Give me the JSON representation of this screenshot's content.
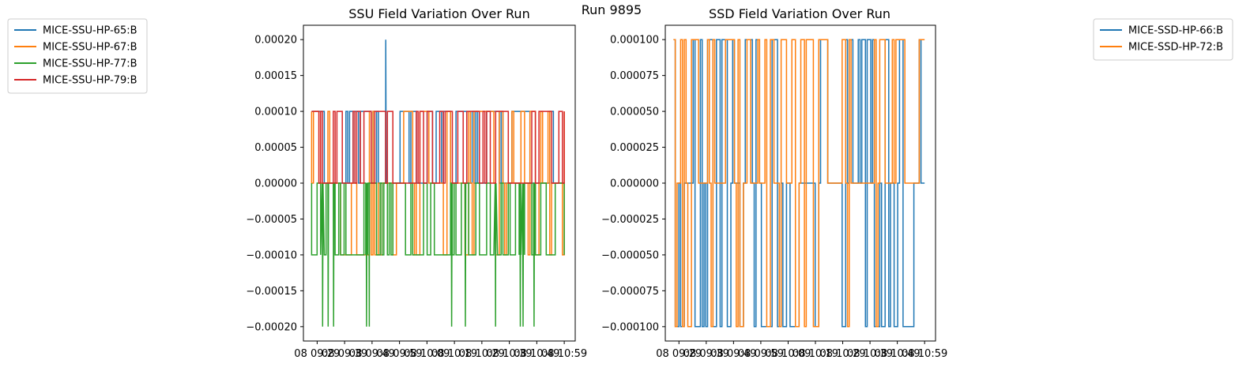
{
  "figure_title": "Run 9895",
  "colors": {
    "c0": "#1f77b4",
    "c1": "#ff7f0e",
    "c2": "#2ca02c",
    "c3": "#d62728"
  },
  "chart_data": [
    {
      "type": "line",
      "title": "SSU Field Variation Over Run",
      "xlabel": "",
      "ylabel": "",
      "ylim": [
        -0.00022,
        0.00022
      ],
      "yticks": [
        0.0002,
        0.00015,
        0.0001,
        5e-05,
        0.0,
        -5e-05,
        -0.0001,
        -0.00015,
        -0.0002
      ],
      "ytick_labels": [
        "0.00020",
        "0.00015",
        "0.00010",
        "0.00005",
        "0.00000",
        "−0.00005",
        "−0.00010",
        "−0.00015",
        "−0.00020"
      ],
      "xtick_labels": [
        "08 09:29",
        "08 09:39",
        "08 09:49",
        "08 09:59",
        "08 10:09",
        "08 10:19",
        "08 10:29",
        "08 10:39",
        "08 10:49",
        "08 10:59"
      ],
      "x_range": [
        "08 09:24",
        "08 11:03"
      ],
      "legend_position": "upper-left-outside",
      "series": [
        {
          "name": "MICE-SSU-HP-65:B",
          "color": "#1f77b4",
          "levels": [
            0.0001,
            0.0
          ],
          "spikes": [
            {
              "time": "08 09:54",
              "value": 0.0002
            }
          ]
        },
        {
          "name": "MICE-SSU-HP-67:B",
          "color": "#ff7f0e",
          "levels": [
            0.0001,
            0.0,
            -0.0001
          ]
        },
        {
          "name": "MICE-SSU-HP-77:B",
          "color": "#2ca02c",
          "levels": [
            0.0,
            -0.0001
          ],
          "spikes": [
            {
              "time": "08 09:31",
              "value": -0.0002
            },
            {
              "time": "08 09:33",
              "value": -0.0002
            },
            {
              "time": "08 09:35",
              "value": -0.0002
            },
            {
              "time": "08 09:47",
              "value": -0.0002
            },
            {
              "time": "08 09:48",
              "value": -0.0002
            },
            {
              "time": "08 10:18",
              "value": -0.0002
            },
            {
              "time": "08 10:23",
              "value": -0.0002
            },
            {
              "time": "08 10:34",
              "value": -0.0002
            },
            {
              "time": "08 10:43",
              "value": -0.0002
            },
            {
              "time": "08 10:44",
              "value": -0.0002
            },
            {
              "time": "08 10:48",
              "value": -0.0002
            }
          ]
        },
        {
          "name": "MICE-SSU-HP-79:B",
          "color": "#d62728",
          "levels": [
            0.0001,
            0.0
          ]
        }
      ]
    },
    {
      "type": "line",
      "title": "SSD Field Variation Over Run",
      "xlabel": "",
      "ylabel": "",
      "ylim": [
        -0.00011,
        0.00011
      ],
      "yticks": [
        0.0001,
        7.5e-05,
        5e-05,
        2.5e-05,
        0.0,
        -2.5e-05,
        -5e-05,
        -7.5e-05,
        -0.0001
      ],
      "ytick_labels": [
        "0.000100",
        "0.000075",
        "0.000050",
        "0.000025",
        "0.000000",
        "−0.000025",
        "−0.000050",
        "−0.000075",
        "−0.000100"
      ],
      "xtick_labels": [
        "08 09:29",
        "08 09:39",
        "08 09:49",
        "08 09:59",
        "08 10:09",
        "08 10:19",
        "08 10:29",
        "08 10:39",
        "08 10:49",
        "08 10:59"
      ],
      "x_range": [
        "08 09:24",
        "08 11:03"
      ],
      "legend_position": "upper-right-outside",
      "series": [
        {
          "name": "MICE-SSD-HP-66:B",
          "color": "#1f77b4",
          "levels": [
            0.0001,
            0.0,
            -0.0001
          ]
        },
        {
          "name": "MICE-SSD-HP-72:B",
          "color": "#ff7f0e",
          "levels": [
            0.0001,
            0.0,
            -0.0001
          ]
        }
      ]
    }
  ]
}
